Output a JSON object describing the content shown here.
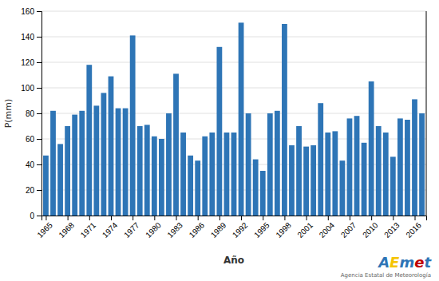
{
  "chart_data": {
    "type": "bar",
    "x": [
      1965,
      1966,
      1967,
      1968,
      1969,
      1970,
      1971,
      1972,
      1973,
      1974,
      1975,
      1976,
      1977,
      1978,
      1979,
      1980,
      1981,
      1982,
      1983,
      1984,
      1985,
      1986,
      1987,
      1988,
      1989,
      1990,
      1991,
      1992,
      1993,
      1994,
      1995,
      1996,
      1997,
      1998,
      1999,
      2000,
      2001,
      2002,
      2003,
      2004,
      2005,
      2006,
      2007,
      2008,
      2009,
      2010,
      2011,
      2012,
      2013,
      2014,
      2015,
      2016,
      2017
    ],
    "values": [
      47,
      82,
      56,
      70,
      79,
      82,
      118,
      86,
      96,
      109,
      84,
      84,
      141,
      70,
      71,
      62,
      60,
      80,
      111,
      65,
      47,
      43,
      62,
      65,
      132,
      65,
      65,
      151,
      80,
      44,
      35,
      80,
      82,
      150,
      55,
      70,
      54,
      55,
      88,
      65,
      66,
      43,
      76,
      78,
      57,
      105,
      70,
      65,
      46,
      76,
      75,
      91,
      80
    ],
    "color": "#2E75B6",
    "x_label": "Año",
    "y_label": "P(mm)",
    "xlim": [
      1964.4,
      2017.6
    ],
    "xticks": [
      1965,
      1968,
      1971,
      1974,
      1977,
      1980,
      1983,
      1986,
      1989,
      1992,
      1995,
      1998,
      2001,
      2004,
      2007,
      2010,
      2013,
      2016
    ],
    "ylim": [
      0,
      160
    ],
    "yticks": [
      0,
      20,
      40,
      60,
      80,
      100,
      120,
      140,
      160
    ],
    "grid": true,
    "annotations": [
      {
        "text": "A",
        "color": "#2E75B6"
      },
      {
        "text": "E",
        "color": "#F5C400"
      },
      {
        "text": "m",
        "color": "#2E75B6"
      },
      {
        "text": "e",
        "color": "#C00000"
      },
      {
        "text": "t",
        "color": "#2E75B6"
      },
      {
        "text": "Agencia Estatal de Meteorología",
        "color": "#666666"
      }
    ]
  }
}
